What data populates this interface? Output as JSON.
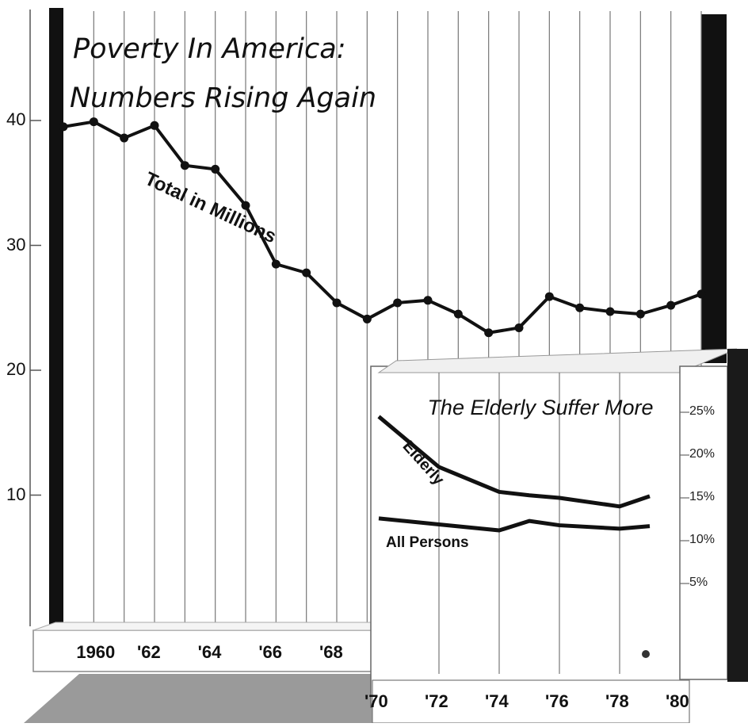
{
  "chart_data": [
    {
      "type": "line",
      "title": "Poverty In America:",
      "subtitle": "Numbers Rising Again",
      "xlabel": "",
      "ylabel": "",
      "ylim": [
        0,
        40
      ],
      "yticks": [
        10,
        20,
        30,
        40
      ],
      "ytick_labels": [
        "10",
        "20",
        "30",
        "40"
      ],
      "xticks": [
        1960,
        1962,
        1964,
        1966,
        1968
      ],
      "xtick_labels": [
        "1960",
        "'62",
        "'64",
        "'66",
        "'68"
      ],
      "grid": "vertical",
      "series": [
        {
          "name": "Total in Millions",
          "x": [
            1959,
            1960,
            1961,
            1962,
            1963,
            1964,
            1965,
            1966,
            1967,
            1968,
            1969,
            1970,
            1971,
            1972,
            1973,
            1974,
            1975,
            1976,
            1977,
            1978,
            1979,
            1980
          ],
          "y": [
            39.5,
            39.9,
            38.6,
            39.6,
            36.4,
            36.1,
            33.2,
            28.5,
            27.8,
            25.4,
            24.1,
            25.4,
            25.6,
            24.5,
            23.0,
            23.4,
            25.9,
            25.0,
            24.7,
            24.5,
            25.2,
            26.1
          ]
        }
      ]
    },
    {
      "type": "line",
      "title": "The Elderly Suffer More",
      "xlabel": "",
      "ylabel": "",
      "ylim": [
        0,
        30
      ],
      "yticks": [
        5,
        10,
        15,
        20,
        25
      ],
      "ytick_labels": [
        "5%",
        "10%",
        "15%",
        "20%",
        "25%"
      ],
      "xticks": [
        1970,
        1972,
        1974,
        1976,
        1978,
        1980
      ],
      "xtick_labels": [
        "'70",
        "'72",
        "'74",
        "'76",
        "'78",
        "'80"
      ],
      "grid": "vertical",
      "series": [
        {
          "name": "Elderly",
          "x": [
            1970,
            1972,
            1974,
            1975,
            1976,
            1978,
            1979
          ],
          "y": [
            24.5,
            18.6,
            15.7,
            15.3,
            15.0,
            14.0,
            15.2
          ]
        },
        {
          "name": "All Persons",
          "x": [
            1970,
            1972,
            1974,
            1975,
            1976,
            1978,
            1979
          ],
          "y": [
            12.6,
            11.9,
            11.2,
            12.3,
            11.8,
            11.4,
            11.7
          ]
        }
      ]
    }
  ]
}
